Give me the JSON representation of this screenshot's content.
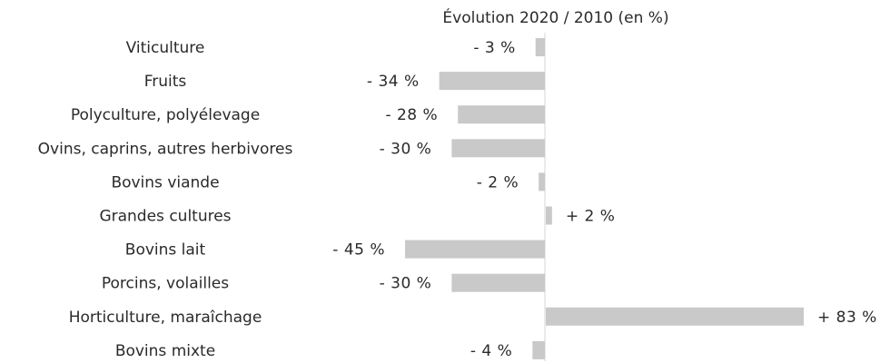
{
  "chart_data": {
    "type": "bar",
    "orientation": "horizontal",
    "title": "Évolution 2020 / 2010 (en %)",
    "xlabel": "",
    "ylabel": "",
    "categories": [
      "Viticulture",
      "Fruits",
      "Polyculture, polyélevage",
      "Ovins, caprins, autres herbivores",
      "Bovins viande",
      "Grandes cultures",
      "Bovins lait",
      "Porcins, volailles",
      "Horticulture, maraîchage",
      "Bovins mixte"
    ],
    "values": [
      -3,
      -34,
      -28,
      -30,
      -2,
      2,
      -45,
      -30,
      83,
      -4
    ],
    "data_labels": [
      "- 3 %",
      "- 34 %",
      "- 28 %",
      "- 30 %",
      "- 2 %",
      "+ 2 %",
      "- 45 %",
      "- 30 %",
      "+ 83 %",
      "- 4 %"
    ],
    "xlim": [
      -45,
      83
    ],
    "grid": false,
    "legend": "none",
    "colors": {
      "bar": "#c9c9c9",
      "axis": "#e3e3e3",
      "text": "#2a2a2a"
    }
  }
}
